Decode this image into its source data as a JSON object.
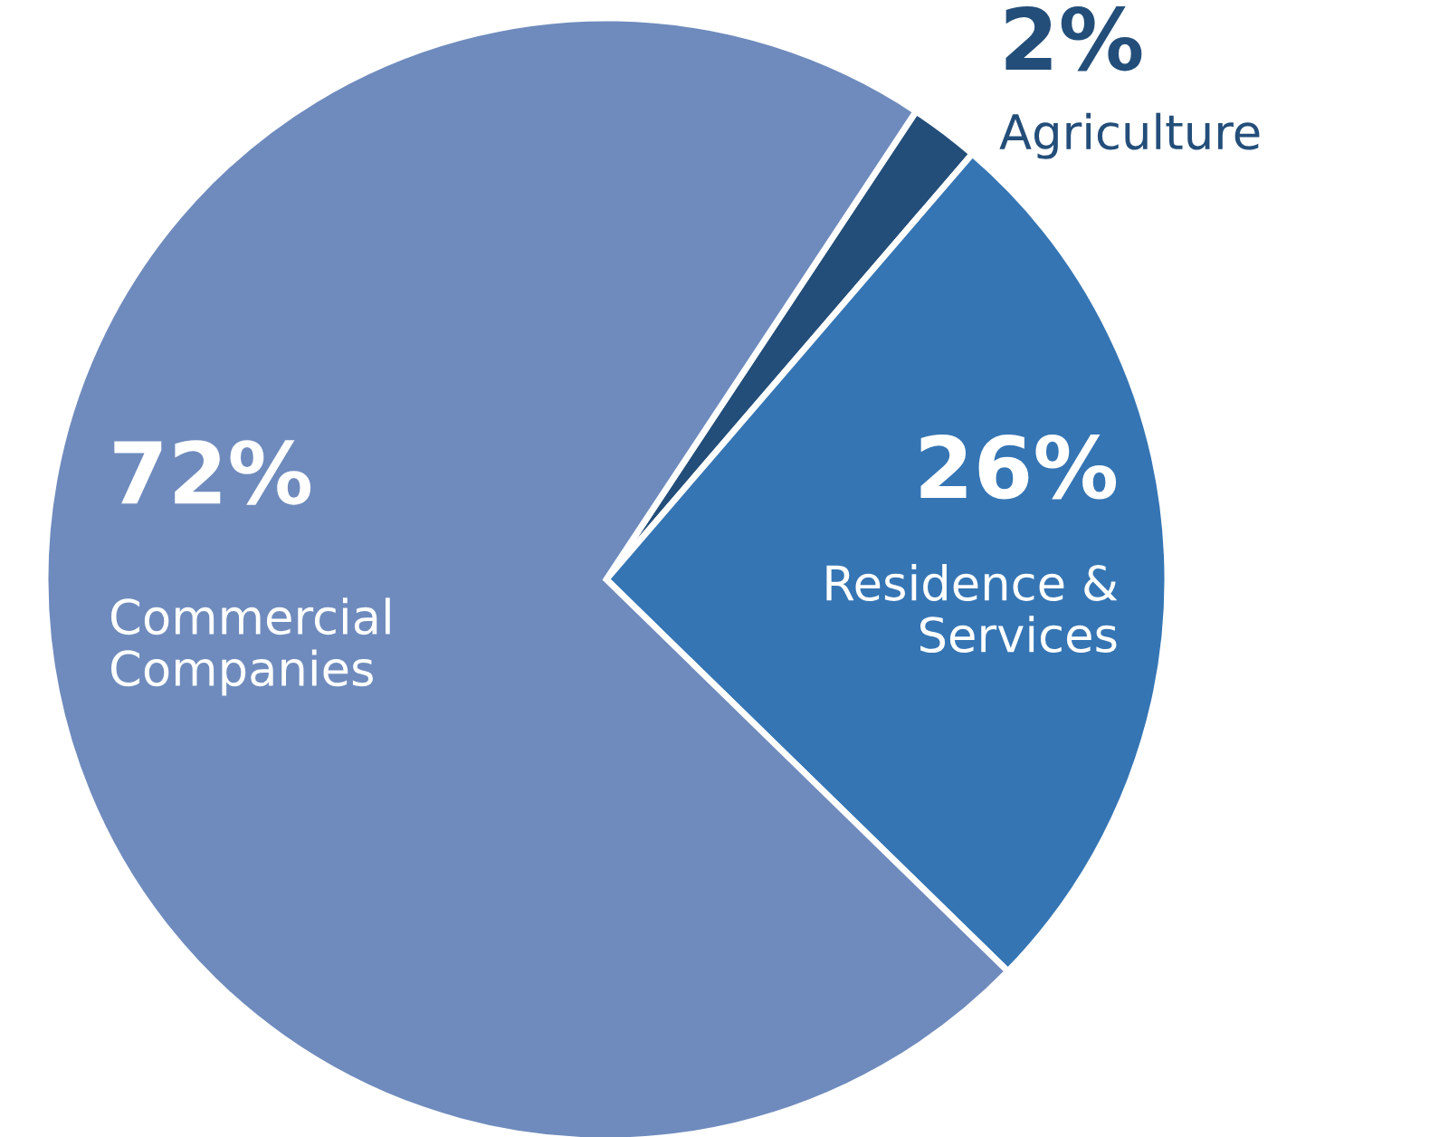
{
  "chart_data": {
    "type": "pie",
    "categories": [
      "Agriculture",
      "Residence & Services",
      "Commercial Companies"
    ],
    "values": [
      2,
      26,
      72
    ],
    "value_labels": [
      "2%",
      "26%",
      "72%"
    ],
    "colors": [
      "#234e7a",
      "#3575b4",
      "#6f8bbd"
    ]
  }
}
